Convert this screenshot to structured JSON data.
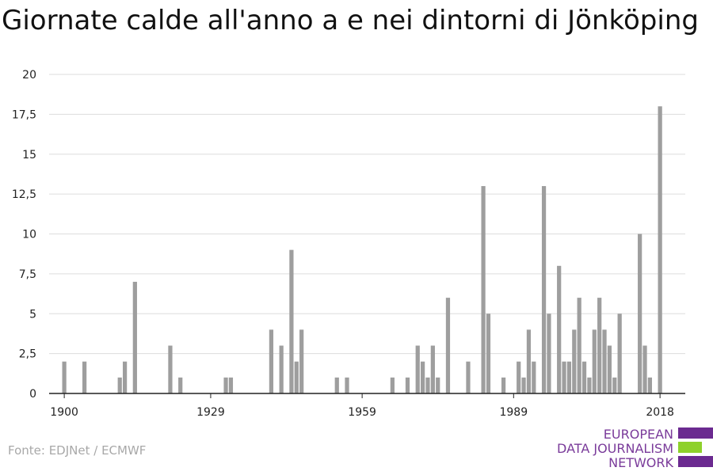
{
  "title": "Giornate calde all'anno a e nei dintorni di Jönköping",
  "source": "Fonte: EDJNet / ECMWF",
  "logo": {
    "line1": "EUROPEAN",
    "line2": "DATA JOURNALISM",
    "line3": "NETWORK",
    "colors": {
      "purple": "#6b2a90",
      "green": "#8ed12b",
      "text": "#7a3b9a"
    }
  },
  "chart_data": {
    "type": "bar",
    "title": "Giornate calde all'anno a e nei dintorni di Jönköping",
    "xlabel": "",
    "ylabel": "",
    "ylim": [
      0,
      20
    ],
    "yticks": [
      0,
      2.5,
      5,
      7.5,
      10,
      12.5,
      15,
      17.5,
      20
    ],
    "ytick_labels": [
      "0",
      "2,5",
      "5",
      "7,5",
      "10",
      "12,5",
      "15",
      "17,5",
      "20"
    ],
    "xticks": [
      1900,
      1929,
      1959,
      1989,
      2018
    ],
    "xtick_labels": [
      "1900",
      "1929",
      "1959",
      "1989",
      "2018"
    ],
    "xlim": [
      1897,
      2023
    ],
    "grid": true,
    "bar_color": "#9e9e9e",
    "x": [
      1900,
      1904,
      1911,
      1912,
      1914,
      1921,
      1923,
      1932,
      1933,
      1941,
      1943,
      1945,
      1946,
      1947,
      1954,
      1956,
      1965,
      1968,
      1970,
      1971,
      1972,
      1973,
      1974,
      1976,
      1980,
      1983,
      1984,
      1987,
      1990,
      1991,
      1992,
      1993,
      1995,
      1996,
      1998,
      1999,
      2000,
      2001,
      2002,
      2003,
      2004,
      2005,
      2006,
      2007,
      2008,
      2009,
      2010,
      2014,
      2015,
      2016,
      2018
    ],
    "values": [
      2,
      2,
      1,
      2,
      7,
      3,
      1,
      1,
      1,
      4,
      3,
      9,
      2,
      4,
      1,
      1,
      1,
      1,
      3,
      2,
      1,
      3,
      1,
      6,
      2,
      13,
      5,
      1,
      2,
      1,
      4,
      2,
      13,
      5,
      8,
      2,
      2,
      4,
      6,
      2,
      1,
      4,
      6,
      4,
      3,
      1,
      5,
      10,
      3,
      1,
      18
    ]
  }
}
